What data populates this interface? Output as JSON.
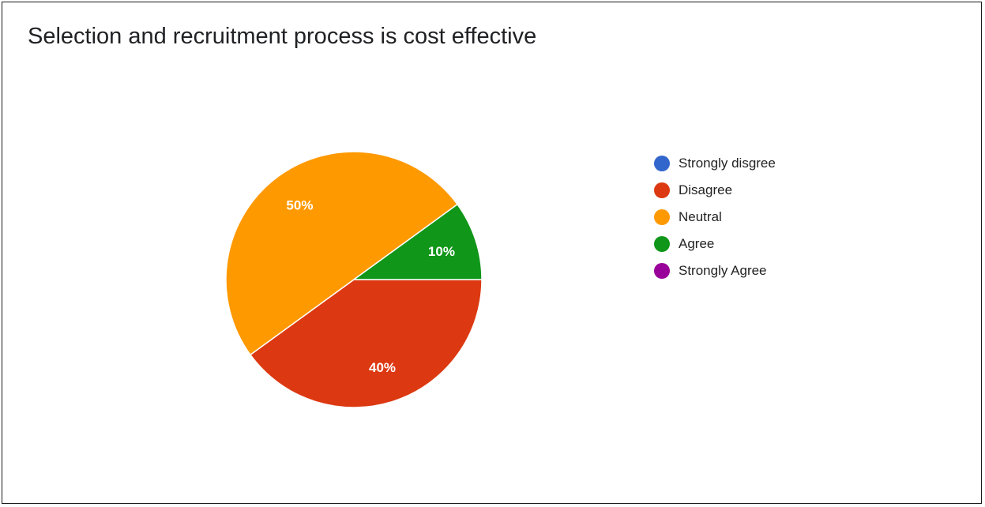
{
  "chart_data": {
    "type": "pie",
    "title": "Selection and recruitment process is cost effective",
    "legend_position": "right",
    "slices": [
      {
        "label": "Strongly disgree",
        "value": 0,
        "color": "#3366cc",
        "label_text": ""
      },
      {
        "label": "Disagree",
        "value": 40,
        "color": "#dc3912",
        "label_text": "40%"
      },
      {
        "label": "Neutral",
        "value": 50,
        "color": "#ff9900",
        "label_text": "50%"
      },
      {
        "label": "Agree",
        "value": 10,
        "color": "#109618",
        "label_text": "10%"
      },
      {
        "label": "Strongly Agree",
        "value": 0,
        "color": "#990099",
        "label_text": ""
      }
    ]
  }
}
